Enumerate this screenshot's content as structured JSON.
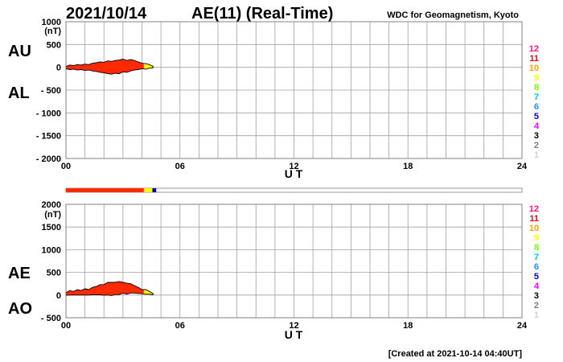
{
  "header": {
    "date": "2021/10/14",
    "title": "AE(11) (Real-Time)",
    "source": "WDC for Geomagnetism, Kyoto"
  },
  "footer": {
    "created": "[Created at 2021-10-14 04:40UT]"
  },
  "labels": {
    "au": "AU",
    "al": "AL",
    "ae": "AE",
    "ao": "AO",
    "unit": "(nT)",
    "xlabel": "U T"
  },
  "station_count_labels": [
    "12",
    "11",
    "10",
    "9",
    "8",
    "7",
    "6",
    "5",
    "4",
    "3",
    "2",
    "1"
  ],
  "station_count_colors": [
    "#ff1493",
    "#ff0000",
    "#ffa500",
    "#ffff00",
    "#7cfc00",
    "#00ced1",
    "#1e90ff",
    "#0000cd",
    "#ff00ff",
    "#000000",
    "#808080",
    "#d3d3d3"
  ],
  "chart_data": [
    {
      "type": "area",
      "name": "AU-AL",
      "ylim": [
        -2000,
        1000
      ],
      "yticks": [
        -2000,
        -1500,
        -1000,
        -500,
        0,
        500,
        1000
      ],
      "yticklabels": [
        "- 2000",
        "- 1500",
        "- 1000",
        "- 500",
        "0",
        "500",
        "1000"
      ],
      "xlim": [
        0,
        24
      ],
      "xticks": [
        0,
        6,
        12,
        18,
        24
      ],
      "xticklabels": [
        "00",
        "06",
        "12",
        "18",
        "24"
      ],
      "grid": true,
      "x": [
        0.0,
        0.2,
        0.4,
        0.6,
        0.8,
        1.0,
        1.2,
        1.4,
        1.6,
        1.8,
        2.0,
        2.2,
        2.4,
        2.6,
        2.8,
        3.0,
        3.2,
        3.4,
        3.6,
        3.8,
        4.0,
        4.2,
        4.4,
        4.6
      ],
      "series": [
        {
          "name": "AU",
          "values": [
            20,
            50,
            40,
            60,
            50,
            70,
            60,
            90,
            100,
            120,
            110,
            140,
            130,
            150,
            160,
            180,
            150,
            170,
            150,
            120,
            90,
            80,
            60,
            20
          ]
        },
        {
          "name": "AL",
          "values": [
            -30,
            -50,
            -40,
            -60,
            -50,
            -70,
            -60,
            -80,
            -90,
            -110,
            -120,
            -140,
            -150,
            -130,
            -140,
            -100,
            -110,
            -80,
            -60,
            -50,
            -30,
            -40,
            -20,
            -10
          ]
        }
      ]
    },
    {
      "type": "area",
      "name": "AE-AO",
      "ylim": [
        -500,
        2000
      ],
      "yticks": [
        -500,
        0,
        500,
        1000,
        1500,
        2000
      ],
      "yticklabels": [
        "- 500",
        "0",
        "500",
        "1000",
        "1500",
        "2000"
      ],
      "xlim": [
        0,
        24
      ],
      "xticks": [
        0,
        6,
        12,
        18,
        24
      ],
      "xticklabels": [
        "00",
        "06",
        "12",
        "18",
        "24"
      ],
      "grid": true,
      "x": [
        0.0,
        0.2,
        0.4,
        0.6,
        0.8,
        1.0,
        1.2,
        1.4,
        1.6,
        1.8,
        2.0,
        2.2,
        2.4,
        2.6,
        2.8,
        3.0,
        3.2,
        3.4,
        3.6,
        3.8,
        4.0,
        4.2,
        4.4,
        4.6
      ],
      "series": [
        {
          "name": "AE",
          "values": [
            50,
            100,
            80,
            120,
            100,
            140,
            120,
            170,
            190,
            230,
            230,
            280,
            280,
            280,
            300,
            280,
            260,
            250,
            210,
            170,
            120,
            120,
            80,
            30
          ]
        },
        {
          "name": "AO",
          "values": [
            -5,
            0,
            0,
            0,
            0,
            0,
            0,
            5,
            5,
            5,
            -5,
            0,
            -10,
            10,
            10,
            40,
            20,
            45,
            45,
            35,
            30,
            20,
            20,
            5
          ]
        }
      ]
    }
  ],
  "station_coverage": {
    "segments": [
      {
        "from": 0.0,
        "to": 4.1,
        "color": "#ff2a00"
      },
      {
        "from": 4.1,
        "to": 4.55,
        "color": "#ffff00"
      },
      {
        "from": 4.55,
        "to": 4.75,
        "color": "#0000cd"
      }
    ]
  }
}
